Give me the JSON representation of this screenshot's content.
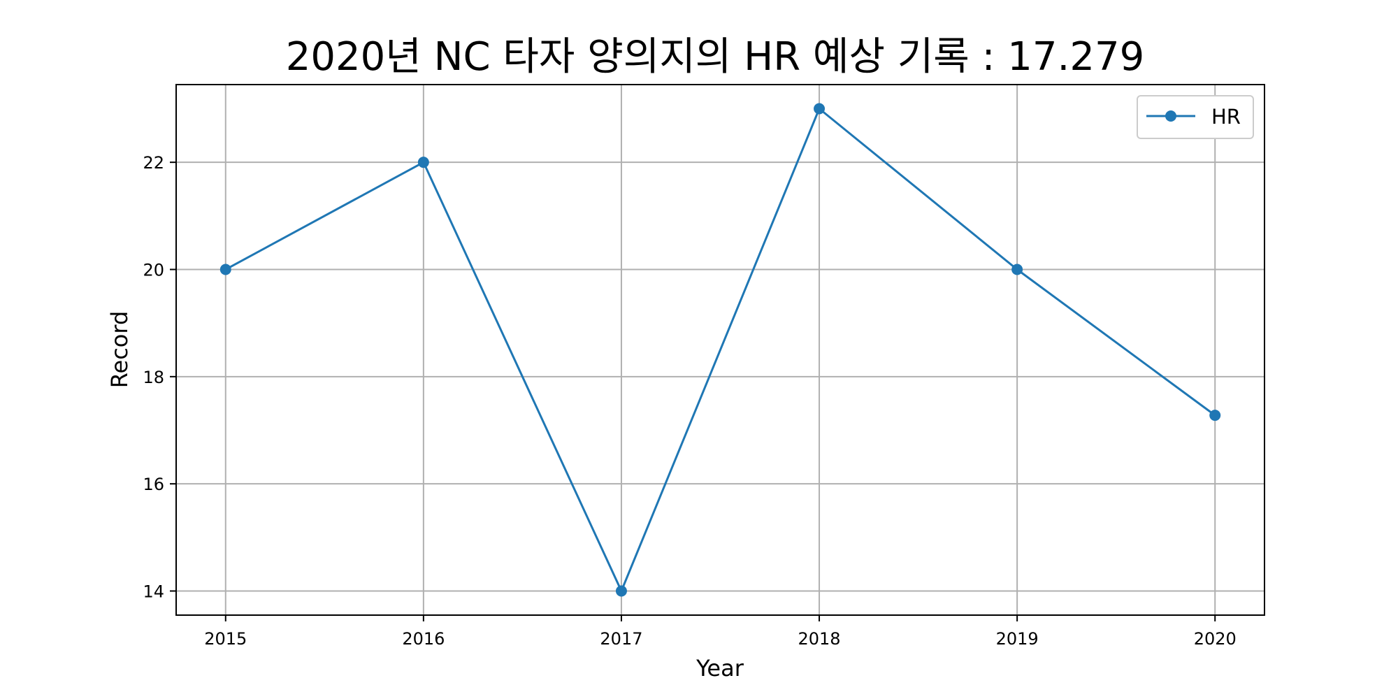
{
  "chart_data": {
    "type": "line",
    "title": "2020년 NC 타자 양의지의 HR 예상 기록 : 17.279",
    "xlabel": "Year",
    "ylabel": "Record",
    "x": [
      2015,
      2016,
      2017,
      2018,
      2019,
      2020
    ],
    "x_tick_labels": [
      "2015",
      "2016",
      "2017",
      "2018",
      "2019",
      "2020"
    ],
    "y_ticks": [
      14,
      16,
      18,
      20,
      22
    ],
    "y_tick_labels": [
      "14",
      "16",
      "18",
      "20",
      "22"
    ],
    "xlim": [
      2014.75,
      2020.25
    ],
    "ylim": [
      13.55,
      23.45
    ],
    "grid": true,
    "legend": "top-right",
    "series": [
      {
        "name": "HR",
        "color": "#1f77b4",
        "marker": "circle",
        "values": [
          20,
          22,
          14,
          23,
          20,
          17.279
        ]
      }
    ]
  }
}
